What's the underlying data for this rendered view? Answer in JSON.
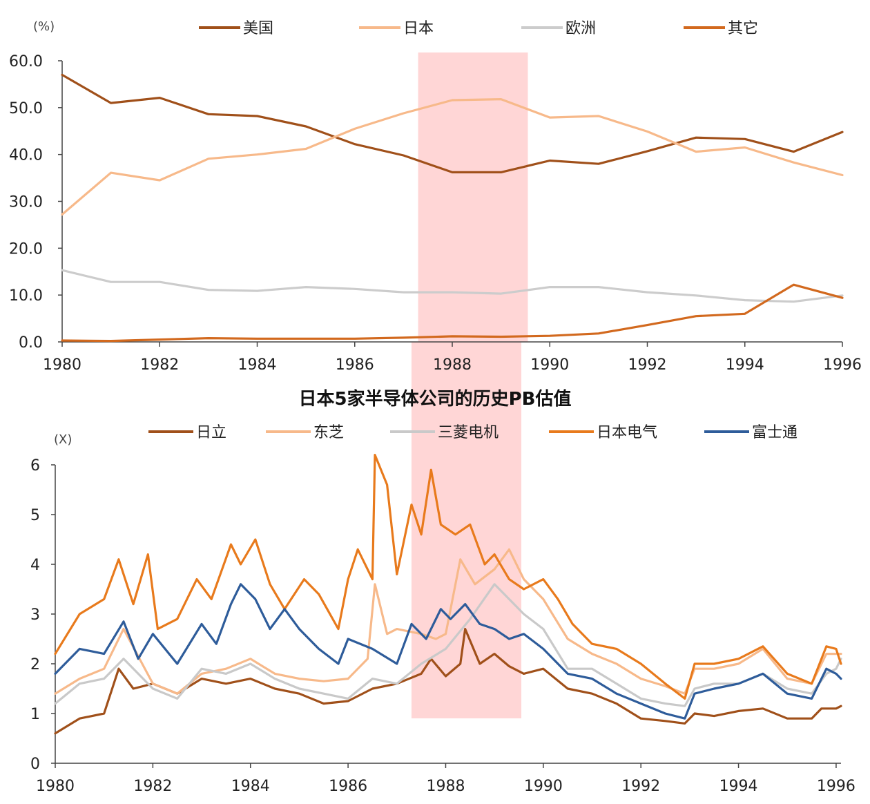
{
  "highlight": {
    "start": 1987.3,
    "end": 1989.55,
    "color": "#ffd6d6"
  },
  "chart_data": [
    {
      "type": "line",
      "title": "",
      "unit_label": "(%)",
      "xlabel": "",
      "ylabel": "",
      "xlim": [
        1980,
        1996
      ],
      "ylim": [
        0,
        60
      ],
      "x_ticks": [
        "1980",
        "1982",
        "1984",
        "1986",
        "1988",
        "1990",
        "1992",
        "1994",
        "1996"
      ],
      "y_ticks": [
        "0.0",
        "10.0",
        "20.0",
        "30.0",
        "40.0",
        "50.0",
        "60.0"
      ],
      "x": [
        1980,
        1981,
        1982,
        1983,
        1984,
        1985,
        1986,
        1987,
        1988,
        1989,
        1990,
        1991,
        1992,
        1993,
        1994,
        1995,
        1996
      ],
      "series": [
        {
          "name": "美国",
          "color": "#a0501a",
          "values": [
            57.0,
            51.0,
            52.1,
            48.6,
            48.2,
            46.0,
            42.2,
            39.8,
            36.2,
            36.2,
            38.7,
            38.0,
            40.7,
            43.6,
            43.3,
            40.6,
            44.8
          ]
        },
        {
          "name": "日本",
          "color": "#f7b98a",
          "values": [
            27.2,
            36.1,
            34.5,
            39.1,
            40.0,
            41.2,
            45.5,
            48.8,
            51.6,
            51.8,
            47.9,
            48.2,
            44.9,
            40.6,
            41.5,
            38.3,
            35.6
          ]
        },
        {
          "name": "欧洲",
          "color": "#cccccc",
          "values": [
            15.3,
            12.8,
            12.8,
            11.1,
            10.9,
            11.7,
            11.3,
            10.6,
            10.6,
            10.3,
            11.7,
            11.7,
            10.6,
            9.9,
            8.9,
            8.6,
            9.9
          ]
        },
        {
          "name": "其它",
          "color": "#d2691e",
          "values": [
            0.3,
            0.2,
            0.5,
            0.8,
            0.7,
            0.7,
            0.7,
            0.9,
            1.2,
            1.1,
            1.3,
            1.8,
            3.6,
            5.5,
            6.0,
            12.2,
            9.4
          ]
        }
      ]
    },
    {
      "type": "line",
      "title": "日本5家半导体公司的历史PB估值",
      "unit_label": "(X)",
      "xlabel": "",
      "ylabel": "",
      "xlim": [
        1980,
        1996.1
      ],
      "ylim": [
        0,
        6
      ],
      "x_ticks": [
        "1980",
        "1982",
        "1984",
        "1986",
        "1988",
        "1990",
        "1992",
        "1994",
        "1996"
      ],
      "y_ticks": [
        "0",
        "1",
        "2",
        "3",
        "4",
        "5",
        "6"
      ],
      "series": [
        {
          "name": "日立",
          "color": "#a0501a",
          "x": [
            1980,
            1980.5,
            1981,
            1981.3,
            1981.6,
            1982,
            1982.5,
            1983,
            1983.5,
            1984,
            1984.5,
            1985,
            1985.5,
            1986,
            1986.5,
            1987,
            1987.5,
            1987.7,
            1988,
            1988.3,
            1988.4,
            1988.7,
            1989,
            1989.3,
            1989.6,
            1990,
            1990.5,
            1991,
            1991.5,
            1992,
            1992.5,
            1992.9,
            1993.1,
            1993.5,
            1994,
            1994.5,
            1995,
            1995.5,
            1995.7,
            1996,
            1996.1
          ],
          "values": [
            0.6,
            0.9,
            1.0,
            1.9,
            1.5,
            1.6,
            1.4,
            1.7,
            1.6,
            1.7,
            1.5,
            1.4,
            1.2,
            1.25,
            1.5,
            1.6,
            1.8,
            2.1,
            1.75,
            2.0,
            2.7,
            2.0,
            2.2,
            1.95,
            1.8,
            1.9,
            1.5,
            1.4,
            1.2,
            0.9,
            0.85,
            0.8,
            1.0,
            0.95,
            1.05,
            1.1,
            0.9,
            0.9,
            1.1,
            1.1,
            1.15
          ]
        },
        {
          "name": "东芝",
          "color": "#f7b98a",
          "x": [
            1980,
            1980.5,
            1981,
            1981.4,
            1982,
            1982.5,
            1983,
            1983.5,
            1984,
            1984.5,
            1985,
            1985.5,
            1986,
            1986.4,
            1986.55,
            1986.8,
            1987,
            1987.5,
            1987.8,
            1988,
            1988.3,
            1988.6,
            1989,
            1989.3,
            1989.6,
            1990,
            1990.5,
            1991,
            1991.5,
            1992,
            1992.5,
            1992.9,
            1993.1,
            1993.5,
            1994,
            1994.5,
            1995,
            1995.5,
            1995.8,
            1996,
            1996.1
          ],
          "values": [
            1.4,
            1.7,
            1.9,
            2.7,
            1.6,
            1.4,
            1.8,
            1.9,
            2.1,
            1.8,
            1.7,
            1.65,
            1.7,
            2.1,
            3.6,
            2.6,
            2.7,
            2.6,
            2.5,
            2.6,
            4.1,
            3.6,
            3.9,
            4.3,
            3.7,
            3.3,
            2.5,
            2.2,
            2.0,
            1.7,
            1.55,
            1.4,
            1.9,
            1.9,
            2.0,
            2.3,
            1.7,
            1.6,
            2.2,
            2.2,
            2.2
          ]
        },
        {
          "name": "三菱电机",
          "color": "#c9c9c9",
          "x": [
            1980,
            1980.5,
            1981,
            1981.4,
            1982,
            1982.5,
            1983,
            1983.5,
            1984,
            1984.5,
            1985,
            1985.5,
            1986,
            1986.5,
            1987,
            1987.5,
            1988,
            1988.5,
            1989,
            1989.3,
            1989.6,
            1990,
            1990.5,
            1991,
            1991.5,
            1992,
            1992.5,
            1992.9,
            1993.1,
            1993.5,
            1994,
            1994.5,
            1995,
            1995.5,
            1995.8,
            1996,
            1996.1
          ],
          "values": [
            1.2,
            1.6,
            1.7,
            2.1,
            1.5,
            1.3,
            1.9,
            1.8,
            2.0,
            1.7,
            1.5,
            1.4,
            1.3,
            1.7,
            1.6,
            2.0,
            2.3,
            2.9,
            3.6,
            3.3,
            3.0,
            2.7,
            1.9,
            1.9,
            1.6,
            1.3,
            1.2,
            1.15,
            1.5,
            1.6,
            1.6,
            1.8,
            1.5,
            1.4,
            1.8,
            1.9,
            2.1
          ]
        },
        {
          "name": "日本电气",
          "color": "#e87a1c",
          "x": [
            1980,
            1980.5,
            1981,
            1981.3,
            1981.6,
            1981.9,
            1982.1,
            1982.5,
            1982.9,
            1983.2,
            1983.6,
            1983.8,
            1984.1,
            1984.4,
            1984.7,
            1985.1,
            1985.4,
            1985.8,
            1986,
            1986.2,
            1986.5,
            1986.55,
            1986.8,
            1987,
            1987.3,
            1987.5,
            1987.7,
            1987.9,
            1988.2,
            1988.5,
            1988.8,
            1989,
            1989.3,
            1989.6,
            1990,
            1990.3,
            1990.6,
            1991,
            1991.5,
            1992,
            1992.5,
            1992.9,
            1993.1,
            1993.5,
            1994,
            1994.5,
            1995,
            1995.5,
            1995.8,
            1996,
            1996.1
          ],
          "values": [
            2.2,
            3.0,
            3.3,
            4.1,
            3.2,
            4.2,
            2.7,
            2.9,
            3.7,
            3.3,
            4.4,
            4.0,
            4.5,
            3.6,
            3.1,
            3.7,
            3.4,
            2.7,
            3.7,
            4.3,
            3.7,
            6.2,
            5.6,
            3.8,
            5.2,
            4.6,
            5.9,
            4.8,
            4.6,
            4.8,
            4.0,
            4.2,
            3.7,
            3.5,
            3.7,
            3.3,
            2.8,
            2.4,
            2.3,
            2.0,
            1.6,
            1.3,
            2.0,
            2.0,
            2.1,
            2.35,
            1.8,
            1.6,
            2.35,
            2.3,
            2.0
          ]
        },
        {
          "name": "富士通",
          "color": "#2e5c9a",
          "x": [
            1980,
            1980.5,
            1981,
            1981.4,
            1981.7,
            1982,
            1982.5,
            1983,
            1983.3,
            1983.6,
            1983.8,
            1984.1,
            1984.4,
            1984.7,
            1985,
            1985.4,
            1985.8,
            1986,
            1986.5,
            1987,
            1987.3,
            1987.6,
            1987.9,
            1988.1,
            1988.4,
            1988.7,
            1989,
            1989.3,
            1989.6,
            1990,
            1990.5,
            1991,
            1991.5,
            1992,
            1992.5,
            1992.9,
            1993.1,
            1993.5,
            1994,
            1994.5,
            1995,
            1995.5,
            1995.8,
            1996,
            1996.1
          ],
          "values": [
            1.8,
            2.3,
            2.2,
            2.85,
            2.1,
            2.6,
            2.0,
            2.8,
            2.4,
            3.2,
            3.6,
            3.3,
            2.7,
            3.1,
            2.7,
            2.3,
            2.0,
            2.5,
            2.3,
            2.0,
            2.8,
            2.5,
            3.1,
            2.9,
            3.2,
            2.8,
            2.7,
            2.5,
            2.6,
            2.3,
            1.8,
            1.7,
            1.4,
            1.2,
            1.0,
            0.9,
            1.4,
            1.5,
            1.6,
            1.8,
            1.4,
            1.3,
            1.9,
            1.8,
            1.7
          ]
        }
      ]
    }
  ]
}
